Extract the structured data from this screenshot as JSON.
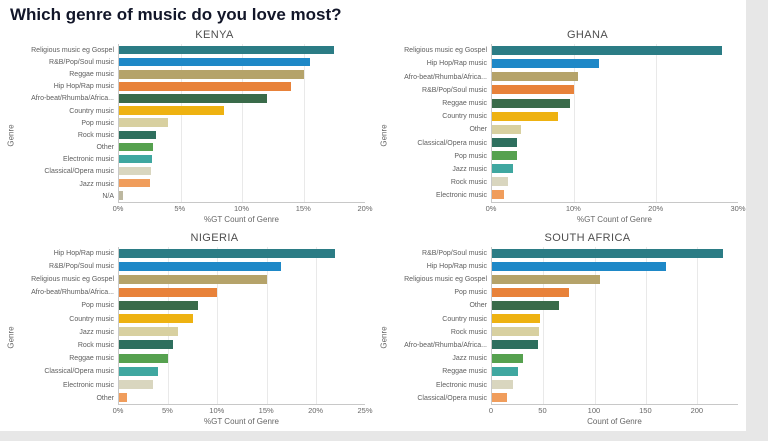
{
  "page": {
    "title": "Which genre of music do you love most?",
    "background": "#ffffff",
    "outer_background": "#e7e7e7",
    "title_color": "#121629"
  },
  "palette": [
    "#2b7c85",
    "#1e88c7",
    "#b5a36a",
    "#e8823a",
    "#3a6b4a",
    "#eeb211",
    "#d8d0a0",
    "#2e6f5e",
    "#56a14f",
    "#3fa7a0",
    "#d9d6bf",
    "#f09d5c",
    "#bdb8a0"
  ],
  "chart_data": [
    {
      "type": "bar",
      "orientation": "horizontal",
      "title": "KENYA",
      "ylabel": "Genre",
      "xlabel": "%GT Count of Genre",
      "xlim": [
        0,
        20
      ],
      "unit": "%",
      "grid": "vertical",
      "legend": "none",
      "tick_values": [
        0,
        5,
        10,
        15,
        20
      ],
      "tick_labels": [
        "0%",
        "5%",
        "10%",
        "15%",
        "20%"
      ],
      "categories": [
        "Religious music eg Gospel",
        "R&B/Pop/Soul music",
        "Reggae music",
        "Hip Hop/Rap music",
        "Afro-beat/Rhumba/Africa...",
        "Country music",
        "Pop music",
        "Rock music",
        "Other",
        "Electronic music",
        "Classical/Opera music",
        "Jazz music",
        "N/A"
      ],
      "values": [
        17.5,
        15.5,
        15,
        14,
        12,
        8.5,
        4,
        3,
        2.8,
        2.7,
        2.6,
        2.5,
        0.3
      ]
    },
    {
      "type": "bar",
      "orientation": "horizontal",
      "title": "GHANA",
      "ylabel": "Genre",
      "xlabel": "%GT Count of Genre",
      "xlim": [
        0,
        30
      ],
      "unit": "%",
      "grid": "vertical",
      "legend": "none",
      "tick_values": [
        0,
        10,
        20,
        30
      ],
      "tick_labels": [
        "0%",
        "10%",
        "20%",
        "30%"
      ],
      "categories": [
        "Religious music eg Gospel",
        "Hip Hop/Rap music",
        "Afro-beat/Rhumba/Africa...",
        "R&B/Pop/Soul music",
        "Reggae music",
        "Country music",
        "Other",
        "Classical/Opera music",
        "Pop music",
        "Jazz music",
        "Rock music",
        "Electronic music"
      ],
      "values": [
        28,
        13,
        10.5,
        10,
        9.5,
        8,
        3.5,
        3,
        3,
        2.5,
        2,
        1.5
      ]
    },
    {
      "type": "bar",
      "orientation": "horizontal",
      "title": "NIGERIA",
      "ylabel": "Genre",
      "xlabel": "%GT Count of Genre",
      "xlim": [
        0,
        25
      ],
      "unit": "%",
      "grid": "vertical",
      "legend": "none",
      "tick_values": [
        0,
        5,
        10,
        15,
        20,
        25
      ],
      "tick_labels": [
        "0%",
        "5%",
        "10%",
        "15%",
        "20%",
        "25%"
      ],
      "categories": [
        "Hip Hop/Rap music",
        "R&B/Pop/Soul music",
        "Religious music eg Gospel",
        "Afro-beat/Rhumba/Africa...",
        "Pop music",
        "Country music",
        "Jazz music",
        "Rock music",
        "Reggae music",
        "Classical/Opera music",
        "Electronic music",
        "Other"
      ],
      "values": [
        22,
        16.5,
        15,
        10,
        8,
        7.5,
        6,
        5.5,
        5,
        4,
        3.5,
        0.8
      ]
    },
    {
      "type": "bar",
      "orientation": "horizontal",
      "title": "SOUTH AFRICA",
      "ylabel": "Genre",
      "xlabel": "Count of Genre",
      "xlim": [
        0,
        240
      ],
      "unit": "count",
      "grid": "vertical",
      "legend": "none",
      "tick_values": [
        0,
        50,
        100,
        150,
        200
      ],
      "tick_labels": [
        "0",
        "50",
        "100",
        "150",
        "200"
      ],
      "categories": [
        "R&B/Pop/Soul music",
        "Hip Hop/Rap music",
        "Religious music eg Gospel",
        "Pop music",
        "Other",
        "Country music",
        "Rock music",
        "Afro-beat/Rhumba/Africa...",
        "Jazz music",
        "Reggae music",
        "Electronic music",
        "Classical/Opera music"
      ],
      "values": [
        225,
        170,
        105,
        75,
        65,
        47,
        46,
        45,
        30,
        25,
        20,
        15
      ]
    }
  ]
}
